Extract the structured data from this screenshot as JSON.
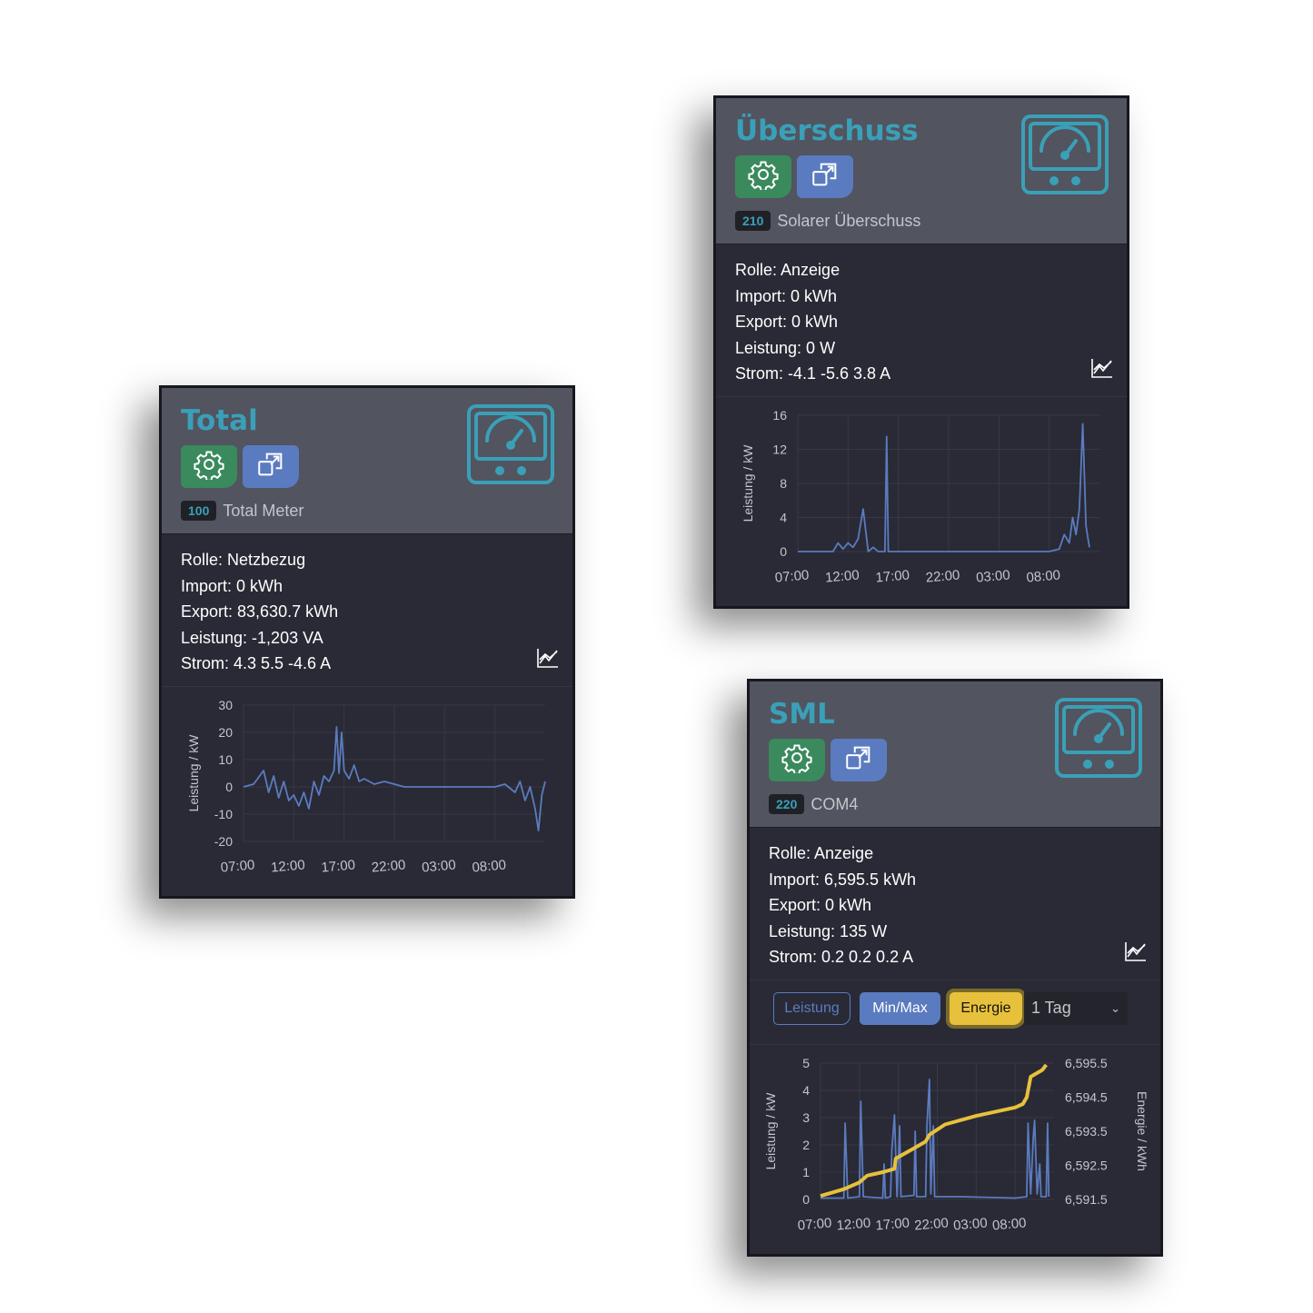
{
  "cards": [
    {
      "id": "total",
      "title": "Total",
      "badge": "100",
      "name": "Total Meter",
      "lines": [
        "Rolle: Netzbezug",
        "Import: 0 kWh",
        "Export: 83,630.7 kWh",
        "Leistung: -1,203 VA",
        "Strom: 4.3 5.5 -4.6 A"
      ]
    },
    {
      "id": "ueberschuss",
      "title": "Überschuss",
      "badge": "210",
      "name": "Solarer Überschuss",
      "lines": [
        "Rolle: Anzeige",
        "Import: 0 kWh",
        "Export: 0 kWh",
        "Leistung: 0 W",
        "Strom: -4.1 -5.6 3.8 A"
      ]
    },
    {
      "id": "sml",
      "title": "SML",
      "badge": "220",
      "name": "COM4",
      "lines": [
        "Rolle: Anzeige",
        "Import: 6,595.5 kWh",
        "Export: 0 kWh",
        "Leistung: 135 W",
        "Strom: 0.2 0.2 0.2 A"
      ],
      "controls": {
        "leistung": "Leistung",
        "minmax": "Min/Max",
        "energie": "Energie",
        "range": "1 Tag"
      }
    }
  ],
  "icons": {
    "settings": "gear-icon",
    "open": "external-window-icon",
    "meter": "gauge-meter-icon",
    "chart": "line-chart-icon",
    "dropdown": "chevron-down-icon"
  },
  "colors": {
    "accent": "#3aa0b8",
    "settings": "#3a8a5e",
    "open": "#5b7bc0",
    "power": "#5b7bc0",
    "energy": "#e8c13c"
  },
  "chart_data": [
    {
      "type": "line",
      "card": "total",
      "ylabel": "Leistung / kW",
      "ylim": [
        -20,
        30
      ],
      "yticks": [
        30,
        20,
        10,
        0,
        -10,
        -20
      ],
      "xticks": [
        "07:00",
        "12:00",
        "17:00",
        "22:00",
        "03:00",
        "08:00"
      ],
      "grid": true,
      "series": [
        {
          "color": "#5b7bc0",
          "points": [
            [
              "07:00",
              0
            ],
            [
              "08:00",
              1
            ],
            [
              "09:00",
              6
            ],
            [
              "09:30",
              -2
            ],
            [
              "10:00",
              4
            ],
            [
              "10:30",
              -4
            ],
            [
              "11:00",
              2
            ],
            [
              "11:30",
              -5
            ],
            [
              "12:00",
              -3
            ],
            [
              "12:30",
              -7
            ],
            [
              "13:00",
              -2
            ],
            [
              "13:30",
              -8
            ],
            [
              "14:00",
              2
            ],
            [
              "14:30",
              -3
            ],
            [
              "15:00",
              4
            ],
            [
              "15:30",
              2
            ],
            [
              "16:00",
              6
            ],
            [
              "16:15",
              22
            ],
            [
              "16:30",
              5
            ],
            [
              "16:45",
              20
            ],
            [
              "17:00",
              6
            ],
            [
              "17:30",
              3
            ],
            [
              "18:00",
              8
            ],
            [
              "18:30",
              2
            ],
            [
              "19:00",
              3
            ],
            [
              "20:00",
              1
            ],
            [
              "21:00",
              2
            ],
            [
              "22:00",
              1
            ],
            [
              "23:00",
              0
            ],
            [
              "02:00",
              0
            ],
            [
              "05:00",
              0
            ],
            [
              "08:00",
              0
            ],
            [
              "09:00",
              1
            ],
            [
              "10:00",
              -2
            ],
            [
              "10:30",
              2
            ],
            [
              "11:00",
              -5
            ],
            [
              "11:30",
              0
            ],
            [
              "12:00",
              -8
            ],
            [
              "12:20",
              -16
            ],
            [
              "12:40",
              -3
            ],
            [
              "13:00",
              2
            ]
          ]
        }
      ]
    },
    {
      "type": "line",
      "card": "ueberschuss",
      "ylabel": "Leistung / kW",
      "ylim": [
        0,
        16
      ],
      "yticks": [
        16,
        12,
        8,
        4,
        0
      ],
      "xticks": [
        "07:00",
        "12:00",
        "17:00",
        "22:00",
        "03:00",
        "08:00"
      ],
      "grid": true,
      "series": [
        {
          "color": "#5b7bc0",
          "points": [
            [
              "07:00",
              0
            ],
            [
              "10:30",
              0
            ],
            [
              "11:00",
              1
            ],
            [
              "11:30",
              0.3
            ],
            [
              "12:00",
              1
            ],
            [
              "12:30",
              0.5
            ],
            [
              "13:00",
              1.5
            ],
            [
              "13:30",
              5
            ],
            [
              "14:00",
              0
            ],
            [
              "14:30",
              0.5
            ],
            [
              "15:00",
              0
            ],
            [
              "15:40",
              0
            ],
            [
              "15:50",
              13.5
            ],
            [
              "16:00",
              0
            ],
            [
              "22:00",
              0
            ],
            [
              "08:00",
              0
            ],
            [
              "09:00",
              0.3
            ],
            [
              "09:30",
              2
            ],
            [
              "10:00",
              1
            ],
            [
              "10:20",
              4
            ],
            [
              "10:40",
              2
            ],
            [
              "11:00",
              5
            ],
            [
              "11:20",
              15
            ],
            [
              "11:40",
              3
            ],
            [
              "12:00",
              0.5
            ]
          ]
        }
      ]
    },
    {
      "type": "line",
      "card": "sml",
      "ylabel": "Leistung / kW",
      "y2label": "Energie / kWh",
      "ylim": [
        0,
        5
      ],
      "y2lim": [
        6591.5,
        6595.5
      ],
      "yticks": [
        5,
        4,
        3,
        2,
        1,
        0
      ],
      "y2ticks": [
        "6,595.5",
        "6,594.5",
        "6,593.5",
        "6,592.5",
        "6,591.5"
      ],
      "xticks": [
        "07:00",
        "12:00",
        "17:00",
        "22:00",
        "03:00",
        "08:00"
      ],
      "grid": true,
      "series": [
        {
          "name": "Leistung",
          "color": "#5b7bc0",
          "points": [
            [
              "07:00",
              0.05
            ],
            [
              "10:00",
              0.05
            ],
            [
              "10:10",
              2.8
            ],
            [
              "10:30",
              0.05
            ],
            [
              "12:00",
              0.1
            ],
            [
              "12:10",
              3.6
            ],
            [
              "12:30",
              0.1
            ],
            [
              "15:00",
              0.05
            ],
            [
              "15:10",
              1.3
            ],
            [
              "15:20",
              0.05
            ],
            [
              "16:00",
              0.1
            ],
            [
              "16:10",
              1.8
            ],
            [
              "16:30",
              3.1
            ],
            [
              "16:50",
              0.1
            ],
            [
              "17:10",
              2.7
            ],
            [
              "17:20",
              0.1
            ],
            [
              "19:00",
              0.15
            ],
            [
              "19:10",
              2.5
            ],
            [
              "19:20",
              0.1
            ],
            [
              "20:30",
              0.1
            ],
            [
              "20:40",
              2.7
            ],
            [
              "21:00",
              4.4
            ],
            [
              "21:10",
              0.2
            ],
            [
              "21:30",
              2.7
            ],
            [
              "21:40",
              0.1
            ],
            [
              "01:00",
              0.1
            ],
            [
              "08:00",
              0.05
            ],
            [
              "09:30",
              0.1
            ],
            [
              "09:40",
              2.8
            ],
            [
              "10:00",
              0.2
            ],
            [
              "10:20",
              2.3
            ],
            [
              "10:30",
              2.9
            ],
            [
              "10:50",
              0.2
            ],
            [
              "11:10",
              1.3
            ],
            [
              "11:20",
              0.1
            ],
            [
              "12:00",
              0.1
            ],
            [
              "12:10",
              2.8
            ],
            [
              "12:20",
              0.1
            ]
          ]
        },
        {
          "name": "Energie",
          "color": "#e8c13c",
          "axis": "right",
          "points": [
            [
              "07:00",
              6591.6
            ],
            [
              "10:00",
              6591.8
            ],
            [
              "12:00",
              6592.0
            ],
            [
              "13:00",
              6592.2
            ],
            [
              "15:00",
              6592.3
            ],
            [
              "16:30",
              6592.4
            ],
            [
              "16:40",
              6592.7
            ],
            [
              "19:00",
              6593.0
            ],
            [
              "20:30",
              6593.2
            ],
            [
              "21:00",
              6593.4
            ],
            [
              "23:00",
              6593.7
            ],
            [
              "03:00",
              6593.95
            ],
            [
              "08:00",
              6594.2
            ],
            [
              "09:00",
              6594.3
            ],
            [
              "09:30",
              6594.5
            ],
            [
              "10:00",
              6595.1
            ],
            [
              "11:30",
              6595.3
            ],
            [
              "12:00",
              6595.45
            ]
          ]
        }
      ]
    }
  ]
}
